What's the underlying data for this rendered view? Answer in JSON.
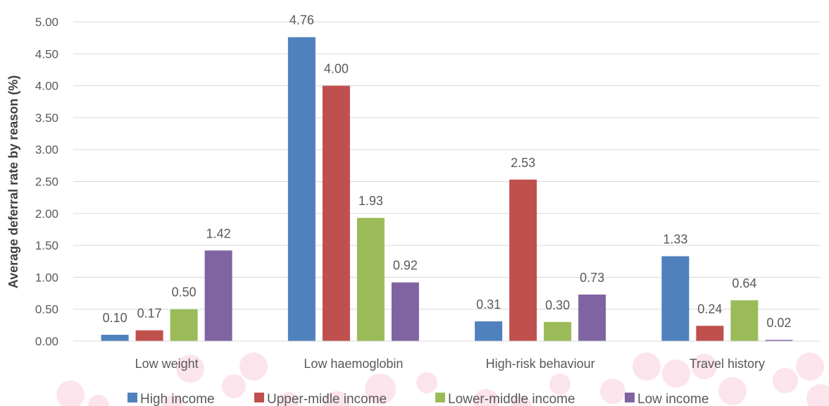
{
  "chart_data": {
    "type": "bar",
    "title": "",
    "xlabel": "",
    "ylabel": "Average deferral rate by reason (%)",
    "ylim": [
      0,
      5
    ],
    "yticks": [
      "0.00",
      "0.50",
      "1.00",
      "1.50",
      "2.00",
      "2.50",
      "3.00",
      "3.50",
      "4.00",
      "4.50",
      "5.00"
    ],
    "categories": [
      "Low weight",
      "Low haemoglobin",
      "High-risk behaviour",
      "Travel history"
    ],
    "series": [
      {
        "name": "High income",
        "color": "#4F81BD",
        "values": [
          0.1,
          4.76,
          0.31,
          1.33
        ],
        "labels": [
          "0.10",
          "4.76",
          "0.31",
          "1.33"
        ]
      },
      {
        "name": "Upper-midle income",
        "color": "#C0504D",
        "values": [
          0.17,
          4.0,
          2.53,
          0.24
        ],
        "labels": [
          "0.17",
          "4.00",
          "2.53",
          "0.24"
        ]
      },
      {
        "name": "Lower-middle income",
        "color": "#9BBB59",
        "values": [
          0.5,
          1.93,
          0.3,
          0.64
        ],
        "labels": [
          "0.50",
          "1.93",
          "0.30",
          "0.64"
        ]
      },
      {
        "name": "Low income",
        "color": "#8064A2",
        "values": [
          1.42,
          0.92,
          0.73,
          0.02
        ],
        "labels": [
          "1.42",
          "0.92",
          "0.73",
          "0.02"
        ]
      }
    ],
    "grid": true,
    "legend_position": "bottom",
    "gridline_color": "#D9D9D9",
    "background_dot_color": "#FCE4EC"
  }
}
